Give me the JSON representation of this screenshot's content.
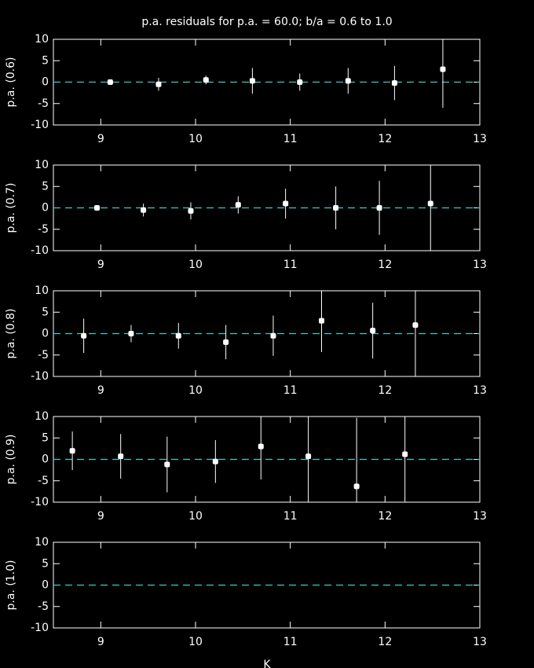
{
  "title": "p.a. residuals for p.a. = 60.0; b/a = 0.6 to 1.0",
  "x_label": "K",
  "chart_data": [
    {
      "type": "scatter",
      "y_label": "p.a. (0.6)",
      "color": "#ffffff",
      "reference_line": 0,
      "reference_color": "#40c8c8",
      "xlim": [
        8.5,
        13
      ],
      "ylim": [
        -10,
        10
      ],
      "xticks": [
        9,
        10,
        11,
        12,
        13
      ],
      "yticks": [
        -10,
        -5,
        0,
        5,
        10
      ],
      "x": [
        9.1,
        9.61,
        10.11,
        10.6,
        11.1,
        11.61,
        12.1,
        12.61
      ],
      "values": [
        0,
        -0.5,
        0.5,
        0.3,
        0,
        0.3,
        -0.2,
        3
      ],
      "errors": [
        0.4,
        1.5,
        1,
        3,
        2,
        3,
        4,
        9
      ]
    },
    {
      "type": "scatter",
      "y_label": "p.a. (0.7)",
      "color": "#ffffff",
      "reference_line": 0,
      "reference_color": "#40c8c8",
      "xlim": [
        8.5,
        13
      ],
      "ylim": [
        -10,
        10
      ],
      "xticks": [
        9,
        10,
        11,
        12,
        13
      ],
      "yticks": [
        -10,
        -5,
        0,
        5,
        10
      ],
      "x": [
        8.96,
        9.45,
        9.95,
        10.45,
        10.95,
        11.48,
        11.94,
        12.48
      ],
      "values": [
        0,
        -0.5,
        -0.7,
        0.7,
        1,
        0,
        0,
        1
      ],
      "errors": [
        0.3,
        1.5,
        2,
        2,
        3.5,
        5,
        6.3,
        11
      ]
    },
    {
      "type": "scatter",
      "y_label": "p.a. (0.8)",
      "color": "#ffffff",
      "reference_line": 0,
      "reference_color": "#40c8c8",
      "xlim": [
        8.5,
        13
      ],
      "ylim": [
        -10,
        10
      ],
      "xticks": [
        9,
        10,
        11,
        12,
        13
      ],
      "yticks": [
        -10,
        -5,
        0,
        5,
        10
      ],
      "x": [
        8.82,
        9.32,
        9.82,
        10.32,
        10.82,
        11.33,
        11.87,
        12.32
      ],
      "values": [
        -0.5,
        0,
        -0.5,
        -2,
        -0.5,
        3,
        0.7,
        2
      ],
      "errors": [
        4,
        2,
        3,
        4,
        4.7,
        7.3,
        6.5,
        12
      ]
    },
    {
      "type": "scatter",
      "y_label": "p.a. (0.9)",
      "color": "#ffffff",
      "reference_line": 0,
      "reference_color": "#40c8c8",
      "xlim": [
        8.5,
        13
      ],
      "ylim": [
        -10,
        10
      ],
      "xticks": [
        9,
        10,
        11,
        12,
        13
      ],
      "yticks": [
        -10,
        -5,
        0,
        5,
        10
      ],
      "x": [
        8.7,
        9.21,
        9.7,
        10.21,
        10.69,
        11.19,
        11.7,
        12.21
      ],
      "values": [
        2,
        0.7,
        -1.2,
        -0.5,
        3,
        0.7,
        -6.3,
        1.2
      ],
      "errors": [
        4.5,
        5.2,
        6.5,
        5,
        7.7,
        11,
        16,
        11.5
      ]
    },
    {
      "type": "scatter",
      "y_label": "p.a. (1.0)",
      "color": "#ffffff",
      "reference_line": 0,
      "reference_color": "#40c8c8",
      "xlim": [
        8.5,
        13
      ],
      "ylim": [
        -10,
        10
      ],
      "xticks": [
        9,
        10,
        11,
        12,
        13
      ],
      "yticks": [
        -10,
        -5,
        0,
        5,
        10
      ],
      "x": [],
      "values": [],
      "errors": []
    }
  ]
}
